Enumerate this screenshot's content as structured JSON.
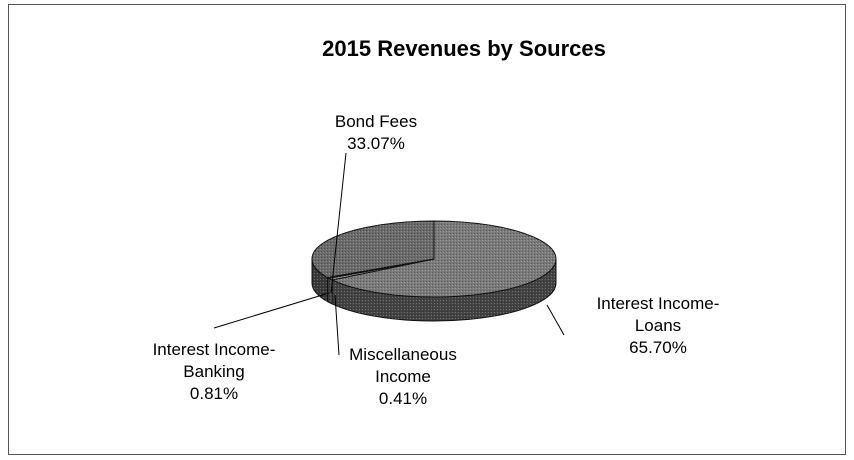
{
  "chart_data": {
    "type": "pie",
    "style": "3d",
    "title": "2015 Revenues by Sources",
    "slices": [
      {
        "label_lines": [
          "Interest Income-",
          "Loans"
        ],
        "label": "Interest Income-Loans",
        "value": 65.7,
        "value_text": "65.70%",
        "color": "#7a7a7a"
      },
      {
        "label_lines": [
          "Interest Income-",
          "Banking"
        ],
        "label": "Interest Income-Banking",
        "value": 0.81,
        "value_text": "0.81%",
        "color": "#a0a0a0"
      },
      {
        "label_lines": [
          "Miscellaneous",
          "Income"
        ],
        "label": "Miscellaneous Income",
        "value": 0.41,
        "value_text": "0.41%",
        "color": "#c8c8c8"
      },
      {
        "label_lines": [
          "Bond Fees"
        ],
        "label": "Bond Fees",
        "value": 33.07,
        "value_text": "33.07%",
        "color": "#6a6a6a"
      }
    ]
  }
}
